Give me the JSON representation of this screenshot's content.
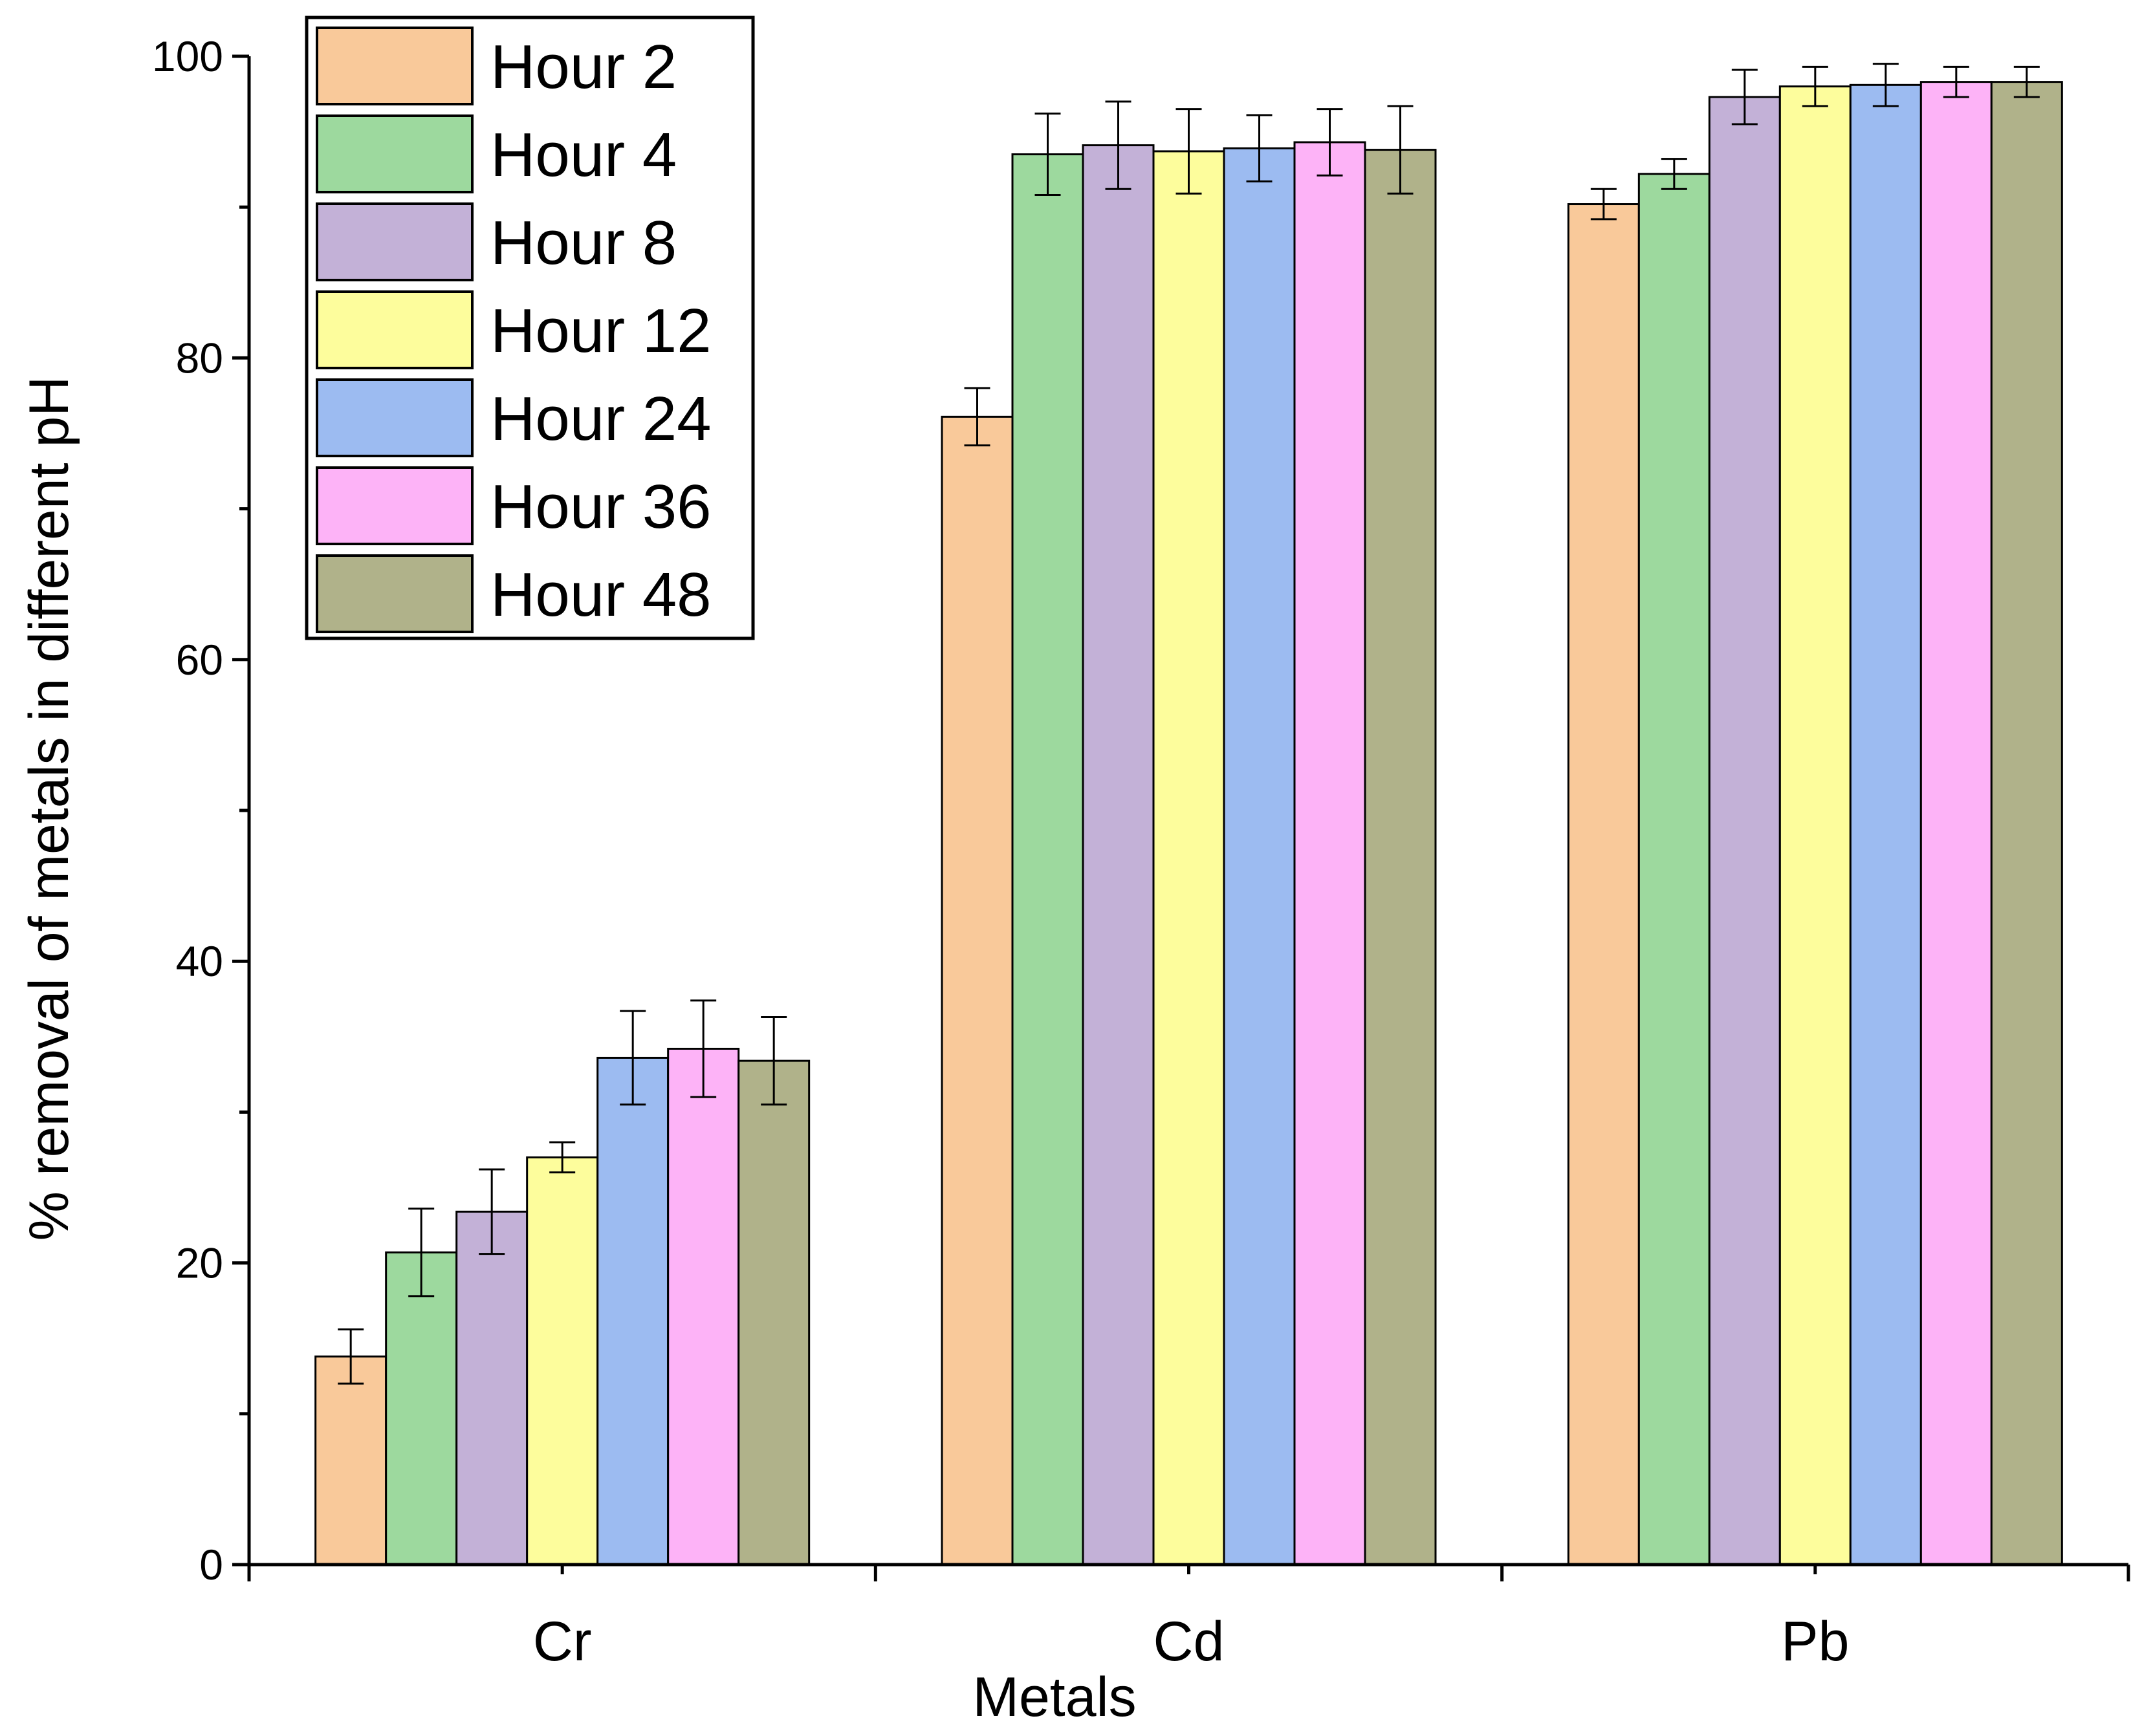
{
  "chart_data": {
    "type": "bar",
    "title": "",
    "xlabel": "Metals",
    "ylabel": "% removal of metals in different pH",
    "categories": [
      "Cr",
      "Cd",
      "Pb"
    ],
    "ylim": [
      0,
      100
    ],
    "yticks": [
      0,
      20,
      40,
      60,
      80,
      100
    ],
    "ytick_labels": [
      "0",
      "20",
      "40",
      "60",
      "80",
      "100"
    ],
    "minor_yticks": [
      10,
      30,
      50,
      70,
      90
    ],
    "legend_position": "top-left",
    "series": [
      {
        "name": "Hour 2",
        "color": "#F9C99A",
        "values": [
          13.8,
          76.1,
          90.2
        ],
        "errors": [
          1.8,
          1.9,
          1.0
        ]
      },
      {
        "name": "Hour 4",
        "color": "#9DD99E",
        "values": [
          20.7,
          93.5,
          92.2
        ],
        "errors": [
          2.9,
          2.7,
          1.0
        ]
      },
      {
        "name": "Hour 8",
        "color": "#C3B1D7",
        "values": [
          23.4,
          94.1,
          97.3
        ],
        "errors": [
          2.8,
          2.9,
          1.8
        ]
      },
      {
        "name": "Hour 12",
        "color": "#FDFD9C",
        "values": [
          27.0,
          93.7,
          98.0
        ],
        "errors": [
          1.0,
          2.8,
          1.3
        ]
      },
      {
        "name": "Hour 24",
        "color": "#9CBBF1",
        "values": [
          33.6,
          93.9,
          98.1
        ],
        "errors": [
          3.1,
          2.2,
          1.4
        ]
      },
      {
        "name": "Hour 36",
        "color": "#FDB3F7",
        "values": [
          34.2,
          94.3,
          98.3
        ],
        "errors": [
          3.2,
          2.2,
          1.0
        ]
      },
      {
        "name": "Hour 48",
        "color": "#B0B28A",
        "values": [
          33.4,
          93.8,
          98.3
        ],
        "errors": [
          2.9,
          2.9,
          1.0
        ]
      }
    ]
  }
}
